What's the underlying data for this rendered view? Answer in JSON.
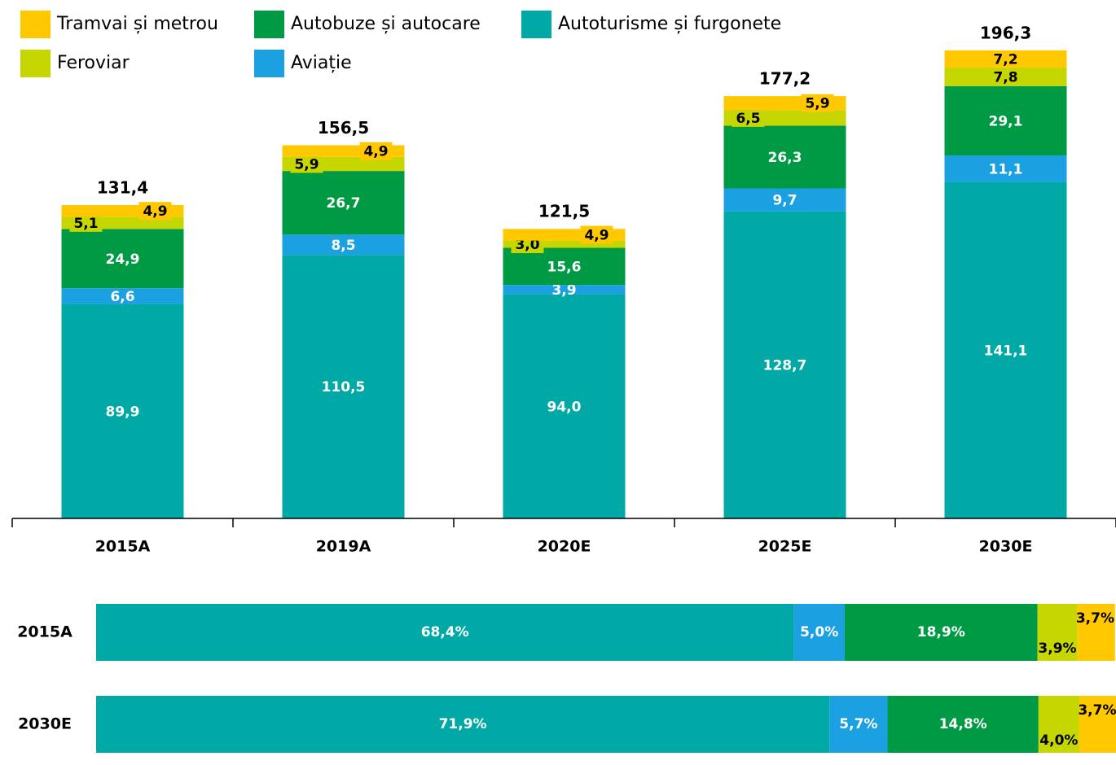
{
  "chart_data": [
    {
      "type": "stacked-bar",
      "categories": [
        "2015A",
        "2019A",
        "2020E",
        "2025E",
        "2030E"
      ],
      "series": [
        {
          "name": "Autoturisme și furgonete",
          "color": "#00A9A5",
          "values": [
            89.9,
            110.5,
            94.0,
            128.7,
            141.1
          ],
          "value_labels": [
            "89,9",
            "110,5",
            "94,0",
            "128,7",
            "141,1"
          ]
        },
        {
          "name": "Aviație",
          "color": "#1BA1E2",
          "values": [
            6.6,
            8.5,
            3.9,
            9.7,
            11.1
          ],
          "value_labels": [
            "6,6",
            "8,5",
            "3,9",
            "9,7",
            "11,1"
          ]
        },
        {
          "name": "Autobuze și autocare",
          "color": "#009A44",
          "values": [
            24.9,
            26.7,
            15.6,
            26.3,
            29.1
          ],
          "value_labels": [
            "24,9",
            "26,7",
            "15,6",
            "26,3",
            "29,1"
          ]
        },
        {
          "name": "Feroviar",
          "color": "#C5D600",
          "values": [
            5.1,
            5.9,
            3.0,
            6.5,
            7.8
          ],
          "value_labels": [
            "5,1",
            "5,9",
            "3,0",
            "6,5",
            "7,8"
          ]
        },
        {
          "name": "Tramvai și metrou",
          "color": "#FFC800",
          "values": [
            4.9,
            4.9,
            4.9,
            5.9,
            7.2
          ],
          "value_labels": [
            "4,9",
            "4,9",
            "4,9",
            "5,9",
            "7,2"
          ]
        }
      ],
      "totals": [
        131.4,
        156.5,
        121.5,
        177.2,
        196.3
      ],
      "total_labels": [
        "131,4",
        "156,5",
        "121,5",
        "177,2",
        "196,3"
      ],
      "ylim": [
        0,
        200
      ]
    },
    {
      "type": "stacked-barh",
      "categories": [
        "2015A",
        "2030E"
      ],
      "series": [
        {
          "color": "#00A9A5",
          "values": [
            68.4,
            71.9
          ],
          "value_labels": [
            "68,4%",
            "71,9%"
          ]
        },
        {
          "color": "#1BA1E2",
          "values": [
            5.0,
            5.7
          ],
          "value_labels": [
            "5,0%",
            "5,7%"
          ]
        },
        {
          "color": "#009A44",
          "values": [
            18.9,
            14.8
          ],
          "value_labels": [
            "18,9%",
            "14,8%"
          ]
        },
        {
          "color": "#C5D600",
          "values": [
            3.9,
            4.0
          ],
          "value_labels": [
            "3,9%",
            "4,0%"
          ]
        },
        {
          "color": "#FFC800",
          "values": [
            3.7,
            3.7
          ],
          "value_labels": [
            "3,7%",
            "3,7%"
          ]
        }
      ],
      "xlim": [
        0,
        100
      ]
    }
  ]
}
